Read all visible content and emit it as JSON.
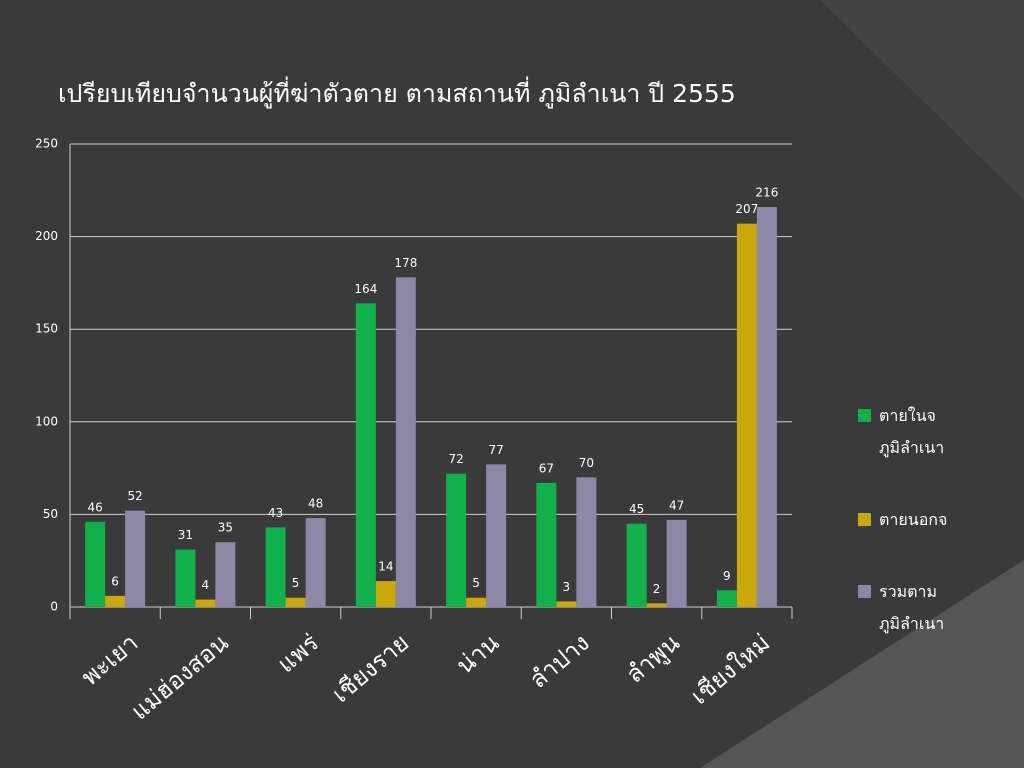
{
  "chart_data": {
    "type": "bar",
    "title": "เปรียบเทียบจำนวนผู้ที่ฆ่าตัวตาย ตามสถานที่ ภูมิลำเนา ปี 2555",
    "categories": [
      "พะเยา",
      "แม่ฮ่องสอน",
      "แพร่",
      "เชียงราย",
      "น่าน",
      "ลำปาง",
      "ลำพูน",
      "เชียงใหม่"
    ],
    "series": [
      {
        "name": "ตายในจ ภูมิลำเนา",
        "color": "#12b04a",
        "values": [
          46,
          31,
          43,
          164,
          72,
          67,
          45,
          9
        ]
      },
      {
        "name": "ตายนอกจ",
        "color": "#c9a80c",
        "values": [
          6,
          4,
          5,
          14,
          5,
          3,
          2,
          207
        ]
      },
      {
        "name": "รวมตาม ภูมิลำเนา",
        "color": "#8e88a8",
        "values": [
          52,
          35,
          48,
          178,
          77,
          70,
          47,
          216
        ]
      }
    ],
    "ylim": [
      0,
      250
    ],
    "yticks": [
      0,
      50,
      100,
      150,
      200,
      250
    ],
    "grid": true,
    "legend": "right"
  }
}
